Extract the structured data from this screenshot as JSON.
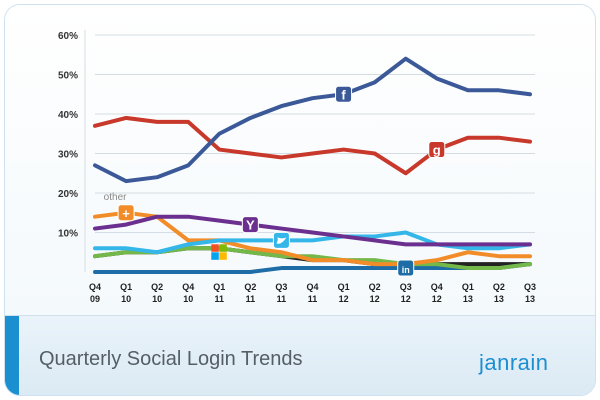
{
  "footer": {
    "title": "Quarterly Social Login Trends",
    "brand": "janrain"
  },
  "colors": {
    "accent": "#1b8fd0"
  },
  "chart_data": {
    "type": "line",
    "title": "Quarterly Social Login Trends",
    "xlabel": "",
    "ylabel": "",
    "ylim": [
      0,
      60
    ],
    "y_ticks": [
      "60%",
      "50%",
      "40%",
      "30%",
      "20%",
      "10%"
    ],
    "grid": true,
    "categories": [
      [
        "Q4",
        "09"
      ],
      [
        "Q1",
        "10"
      ],
      [
        "Q2",
        "10"
      ],
      [
        "Q4",
        "10"
      ],
      [
        "Q1",
        "11"
      ],
      [
        "Q2",
        "11"
      ],
      [
        "Q3",
        "11"
      ],
      [
        "Q4",
        "11"
      ],
      [
        "Q1",
        "12"
      ],
      [
        "Q2",
        "12"
      ],
      [
        "Q3",
        "12"
      ],
      [
        "Q4",
        "12"
      ],
      [
        "Q1",
        "13"
      ],
      [
        "Q2",
        "13"
      ],
      [
        "Q3",
        "13"
      ]
    ],
    "series": [
      {
        "icon": "facebook-icon",
        "icon_text": "f",
        "color": "#3b5998",
        "icon_at": 8,
        "values": [
          27,
          23,
          24,
          27,
          35,
          39,
          42,
          44,
          45,
          48,
          54,
          49,
          46,
          46,
          45
        ]
      },
      {
        "icon": "google-icon",
        "icon_text": "g",
        "color": "#c8382b",
        "icon_at": 11,
        "values": [
          37,
          39,
          38,
          38,
          31,
          30,
          29,
          30,
          31,
          30,
          25,
          31,
          34,
          34,
          33
        ]
      },
      {
        "icon": "yahoo-icon",
        "icon_text": "Y",
        "color": "#6b2f8f",
        "icon_at": 5,
        "values": [
          11,
          12,
          14,
          14,
          13,
          12,
          11,
          10,
          9,
          8,
          7,
          7,
          7,
          7,
          7
        ]
      },
      {
        "icon": "twitter-icon",
        "icon_text": "",
        "color": "#35b6e8",
        "icon_at": 6,
        "values": [
          6,
          6,
          5,
          7,
          8,
          8,
          8,
          8,
          9,
          9,
          10,
          7,
          6,
          6,
          7
        ]
      },
      {
        "icon": "other-icon",
        "icon_text": "+",
        "label": "other",
        "color": "#f28c28",
        "icon_at": 1,
        "values": [
          14,
          15,
          14,
          8,
          8,
          6,
          5,
          3,
          3,
          2,
          2,
          3,
          5,
          4,
          4
        ]
      },
      {
        "icon": "windows-icon",
        "icon_text": "",
        "color": "#74b84a",
        "icon_at": 4,
        "values": [
          4,
          5,
          5,
          6,
          6,
          5,
          4,
          4,
          3,
          3,
          2,
          2,
          1,
          1,
          2
        ]
      },
      {
        "icon": "linkedin-icon",
        "icon_text": "in",
        "color": "#1f6da6",
        "icon_at": 10,
        "values": [
          0,
          0,
          0,
          0,
          0,
          0,
          1,
          1,
          1,
          1,
          1,
          1,
          1,
          1,
          2
        ]
      },
      {
        "icon": "",
        "icon_text": "",
        "color": "#222222",
        "icon_at": -1,
        "values": [
          4,
          5,
          5,
          6,
          6,
          5,
          4,
          3,
          3,
          2,
          2,
          2,
          2,
          2,
          2
        ]
      }
    ]
  }
}
